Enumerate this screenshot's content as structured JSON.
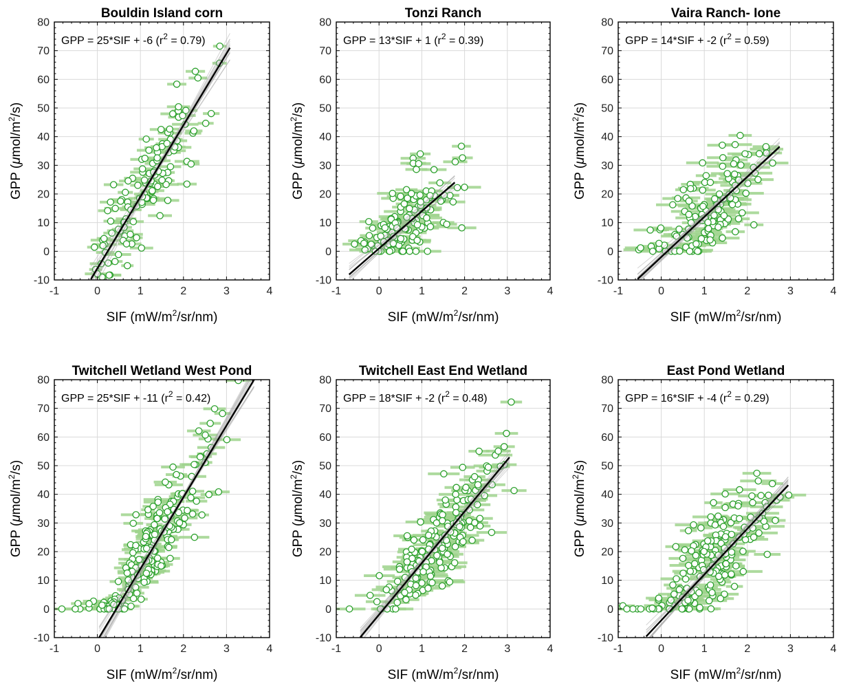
{
  "figure": {
    "layout": "2 rows x 3 columns"
  },
  "colors": {
    "points_edge": "#2ca02c",
    "points_face": "#ffffff",
    "errorbar": "#9fd38d",
    "fit_line": "#000000",
    "bootstrap_lines": "#9e9e9e",
    "grid": "#d9d9d9"
  },
  "chart_data": [
    {
      "type": "scatter",
      "title": "Bouldin Island corn",
      "equation": {
        "main": "GPP = 25*SIF + -6 (r",
        "sup": "2",
        "tail": " = 0.79)"
      },
      "xlabel": {
        "main": "SIF (mW/m",
        "sup": "2",
        "tail": "/sr/nm)"
      },
      "ylabel": {
        "pre": "GPP (",
        "mu": "μ",
        "main": "mol/m",
        "sup": "2",
        "tail": "/s)"
      },
      "xlim": [
        -1,
        4
      ],
      "ylim": [
        -10,
        80
      ],
      "xticks": [
        "-1",
        "0",
        "1",
        "2",
        "3",
        "4"
      ],
      "yticks": [
        "-10",
        "0",
        "10",
        "20",
        "30",
        "40",
        "50",
        "60",
        "70",
        "80"
      ],
      "grid": true,
      "fit": {
        "slope": 25,
        "intercept": -6,
        "x_range": [
          -0.15,
          3.08
        ]
      },
      "points": {
        "count": 150,
        "x_center": 0.9,
        "x_spread": 0.9,
        "y_floor": false,
        "xerr": 0.22,
        "seed": 11
      }
    },
    {
      "type": "scatter",
      "title": "Tonzi Ranch",
      "equation": {
        "main": "GPP = 13*SIF +  1 (r",
        "sup": "2",
        "tail": " = 0.39)"
      },
      "xlabel": {
        "main": "SIF (mW/m",
        "sup": "2",
        "tail": "/sr/nm)"
      },
      "ylabel": {
        "pre": "GPP (",
        "mu": "μ",
        "main": "mol/m",
        "sup": "2",
        "tail": "/s)"
      },
      "xlim": [
        -1,
        4
      ],
      "ylim": [
        -10,
        80
      ],
      "xticks": [
        "-1",
        "0",
        "1",
        "2",
        "3",
        "4"
      ],
      "yticks": [
        "-10",
        "0",
        "10",
        "20",
        "30",
        "40",
        "50",
        "60",
        "70",
        "80"
      ],
      "grid": true,
      "fit": {
        "slope": 13,
        "intercept": 1,
        "x_range": [
          -0.7,
          1.77
        ]
      },
      "points": {
        "count": 140,
        "x_center": 0.7,
        "x_spread": 0.5,
        "y_floor": true,
        "xerr": 0.28,
        "seed": 23
      }
    },
    {
      "type": "scatter",
      "title": "Vaira Ranch- Ione",
      "equation": {
        "main": "GPP = 14*SIF + -2 (r",
        "sup": "2",
        "tail": " = 0.59)"
      },
      "xlabel": {
        "main": "SIF (mW/m",
        "sup": "2",
        "tail": "/sr/nm)"
      },
      "ylabel": {
        "pre": "GPP (",
        "mu": "μ",
        "main": "mol/m",
        "sup": "2",
        "tail": "/s)"
      },
      "xlim": [
        -1,
        4
      ],
      "ylim": [
        -10,
        80
      ],
      "xticks": [
        "-1",
        "0",
        "1",
        "2",
        "3",
        "4"
      ],
      "yticks": [
        "-10",
        "0",
        "10",
        "20",
        "30",
        "40",
        "50",
        "60",
        "70",
        "80"
      ],
      "grid": true,
      "fit": {
        "slope": 14,
        "intercept": -2,
        "x_range": [
          -0.55,
          2.75
        ]
      },
      "points": {
        "count": 140,
        "x_center": 1.1,
        "x_spread": 0.65,
        "y_floor": true,
        "xerr": 0.3,
        "seed": 37
      }
    },
    {
      "type": "scatter",
      "title": "Twitchell Wetland West Pond",
      "equation": {
        "main": "GPP = 25*SIF + -11 (r",
        "sup": "2",
        "tail": " = 0.42)"
      },
      "xlabel": {
        "main": "SIF (mW/m",
        "sup": "2",
        "tail": "/sr/nm)"
      },
      "ylabel": {
        "pre": "GPP (",
        "mu": "μ",
        "main": "mol/m",
        "sup": "2",
        "tail": "/s)"
      },
      "xlim": [
        -1,
        4
      ],
      "ylim": [
        -10,
        80
      ],
      "xticks": [
        "-1",
        "0",
        "1",
        "2",
        "3",
        "4"
      ],
      "yticks": [
        "-10",
        "0",
        "10",
        "20",
        "30",
        "40",
        "50",
        "60",
        "70",
        "80"
      ],
      "grid": true,
      "fit": {
        "slope": 25,
        "intercept": -11,
        "x_range": [
          0.04,
          3.64
        ]
      },
      "points": {
        "count": 200,
        "x_center": 1.3,
        "x_spread": 0.75,
        "y_floor": true,
        "xerr": 0.25,
        "seed": 41
      }
    },
    {
      "type": "scatter",
      "title": "Twitchell East End Wetland",
      "equation": {
        "main": "GPP = 18*SIF + -2 (r",
        "sup": "2",
        "tail": " = 0.48)"
      },
      "xlabel": {
        "main": "SIF (mW/m",
        "sup": "2",
        "tail": "/sr/nm)"
      },
      "ylabel": {
        "pre": "GPP (",
        "mu": "μ",
        "main": "mol/m",
        "sup": "2",
        "tail": "/s)"
      },
      "xlim": [
        -1,
        4
      ],
      "ylim": [
        -10,
        80
      ],
      "xticks": [
        "-1",
        "0",
        "1",
        "2",
        "3",
        "4"
      ],
      "yticks": [
        "-10",
        "0",
        "10",
        "20",
        "30",
        "40",
        "50",
        "60",
        "70",
        "80"
      ],
      "grid": true,
      "fit": {
        "slope": 18,
        "intercept": -2,
        "x_range": [
          -0.44,
          3.05
        ]
      },
      "points": {
        "count": 190,
        "x_center": 1.3,
        "x_spread": 0.75,
        "y_floor": true,
        "xerr": 0.3,
        "seed": 53
      }
    },
    {
      "type": "scatter",
      "title": "East Pond Wetland",
      "equation": {
        "main": "GPP = 16*SIF + -4 (r",
        "sup": "2",
        "tail": " = 0.29)"
      },
      "xlabel": {
        "main": "SIF (mW/m",
        "sup": "2",
        "tail": "/sr/nm)"
      },
      "ylabel": {
        "pre": "GPP (",
        "mu": "μ",
        "main": "mol/m",
        "sup": "2",
        "tail": "/s)"
      },
      "xlim": [
        -1,
        4
      ],
      "ylim": [
        -10,
        80
      ],
      "xticks": [
        "-1",
        "0",
        "1",
        "2",
        "3",
        "4"
      ],
      "yticks": [
        "-10",
        "0",
        "10",
        "20",
        "30",
        "40",
        "50",
        "60",
        "70",
        "80"
      ],
      "grid": true,
      "fit": {
        "slope": 16,
        "intercept": -4,
        "x_range": [
          -0.35,
          2.95
        ]
      },
      "points": {
        "count": 190,
        "x_center": 1.15,
        "x_spread": 0.7,
        "y_floor": true,
        "xerr": 0.32,
        "seed": 67
      }
    }
  ]
}
